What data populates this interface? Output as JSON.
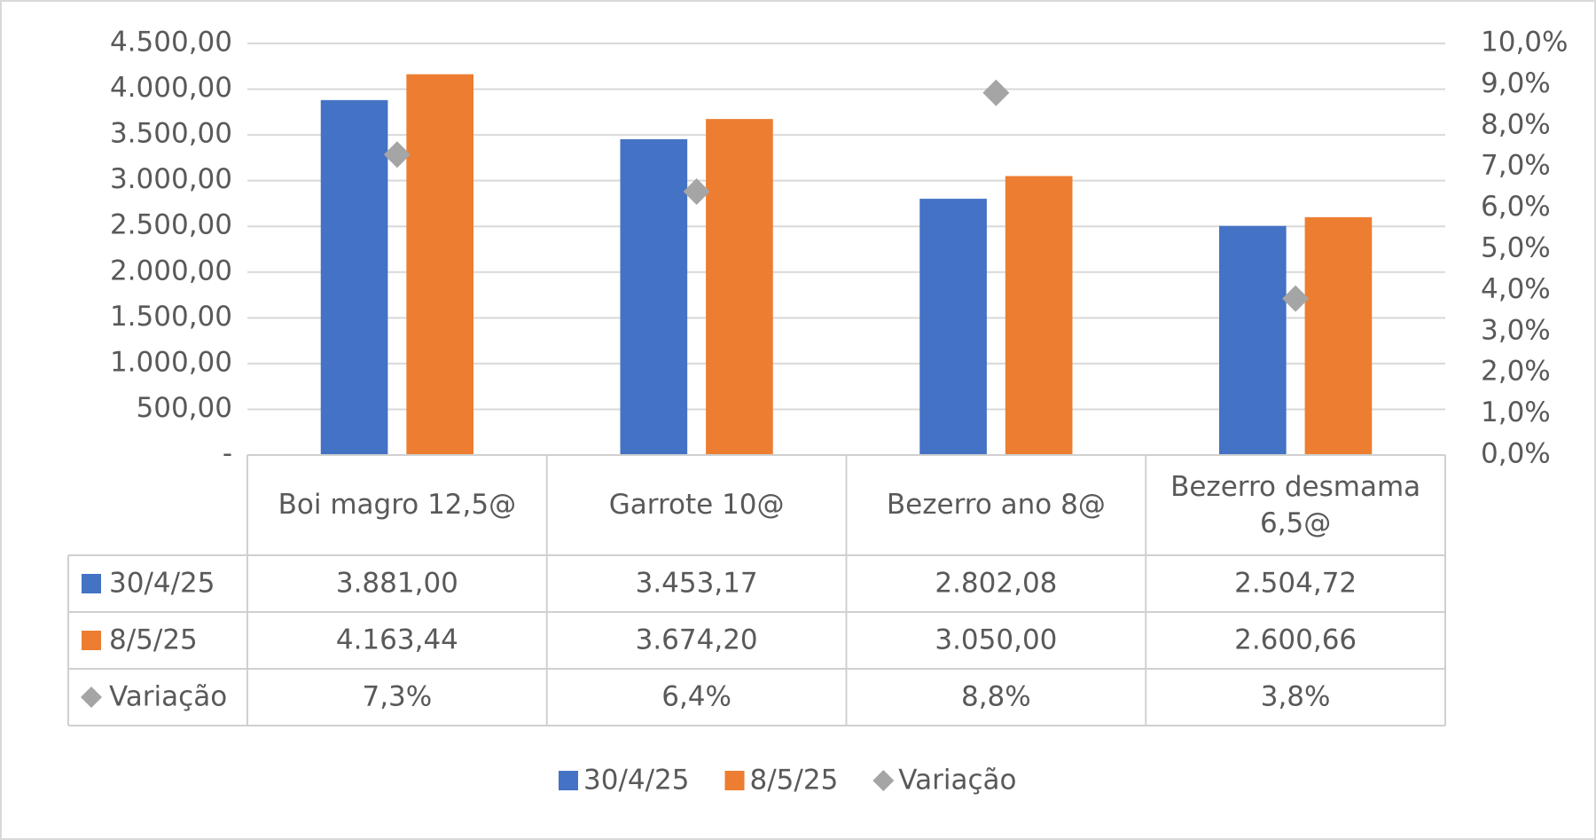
{
  "chart_data": {
    "type": "bar",
    "categories": [
      "Boi magro 12,5@",
      "Garrote 10@",
      "Bezerro ano 8@",
      "Bezerro desmama 6,5@"
    ],
    "series": [
      {
        "name": "30/4/25",
        "color": "#4472c4",
        "values": [
          3881.0,
          3453.17,
          2802.08,
          2504.72
        ],
        "value_labels": [
          "3.881,00",
          "3.453,17",
          "2.802,08",
          "2.504,72"
        ]
      },
      {
        "name": "8/5/25",
        "color": "#ed7d31",
        "values": [
          4163.44,
          3674.2,
          3050.0,
          2600.66
        ],
        "value_labels": [
          "4.163,44",
          "3.674,20",
          "3.050,00",
          "2.600,66"
        ]
      },
      {
        "name": "Variação",
        "type": "scatter",
        "axis": "y2",
        "color": "#a5a5a5",
        "values": [
          7.3,
          6.4,
          8.8,
          3.8
        ],
        "value_labels": [
          "7,3%",
          "6,4%",
          "8,8%",
          "3,8%"
        ]
      }
    ],
    "ylim": [
      0,
      4500
    ],
    "yticks": [
      {
        "value": 0,
        "label": "-"
      },
      {
        "value": 500,
        "label": "500,00"
      },
      {
        "value": 1000,
        "label": "1.000,00"
      },
      {
        "value": 1500,
        "label": "1.500,00"
      },
      {
        "value": 2000,
        "label": "2.000,00"
      },
      {
        "value": 2500,
        "label": "2.500,00"
      },
      {
        "value": 3000,
        "label": "3.000,00"
      },
      {
        "value": 3500,
        "label": "3.500,00"
      },
      {
        "value": 4000,
        "label": "4.000,00"
      },
      {
        "value": 4500,
        "label": "4.500,00"
      }
    ],
    "y2lim": [
      0,
      10
    ],
    "y2ticks": [
      {
        "value": 0,
        "label": "0,0%"
      },
      {
        "value": 1,
        "label": "1,0%"
      },
      {
        "value": 2,
        "label": "2,0%"
      },
      {
        "value": 3,
        "label": "3,0%"
      },
      {
        "value": 4,
        "label": "4,0%"
      },
      {
        "value": 5,
        "label": "5,0%"
      },
      {
        "value": 6,
        "label": "6,0%"
      },
      {
        "value": 7,
        "label": "7,0%"
      },
      {
        "value": 8,
        "label": "8,0%"
      },
      {
        "value": 9,
        "label": "9,0%"
      },
      {
        "value": 10,
        "label": "10,0%"
      }
    ],
    "grid": true,
    "data_table": true,
    "legend": "bottom"
  }
}
